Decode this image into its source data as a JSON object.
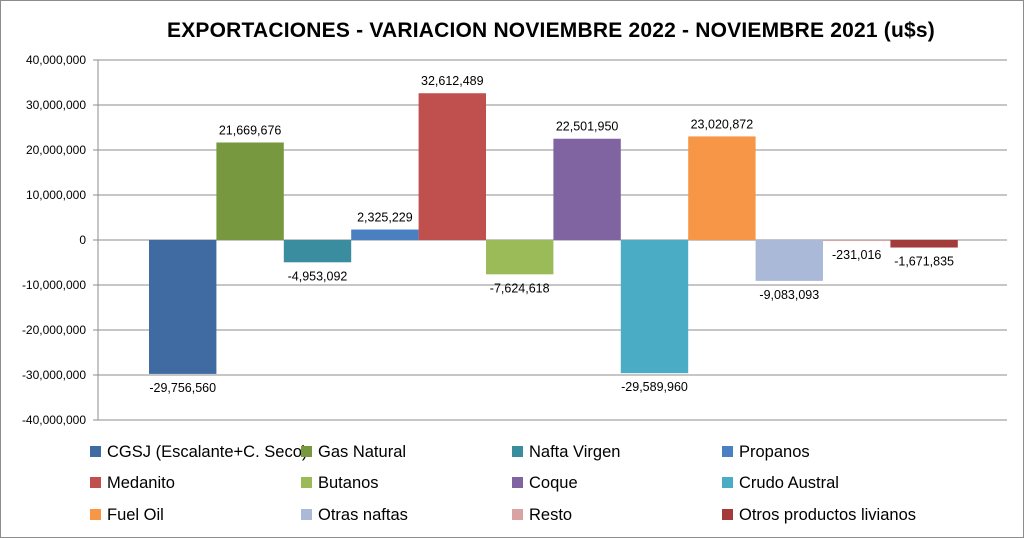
{
  "chart_data": {
    "type": "bar",
    "title": "EXPORTACIONES - VARIACION NOVIEMBRE 2022 - NOVIEMBRE 2021 (u$s)",
    "xlabel": "",
    "ylabel": "",
    "ylim": [
      -40000000,
      40000000
    ],
    "yticks": [
      40000000,
      30000000,
      20000000,
      10000000,
      0,
      -10000000,
      -20000000,
      -30000000,
      -40000000
    ],
    "ytick_labels": [
      "40,000,000",
      "30,000,000",
      "20,000,000",
      "10,000,000",
      "0",
      "-10,000,000",
      "-20,000,000",
      "-30,000,000",
      "-40,000,000"
    ],
    "grid": true,
    "legend_position": "bottom",
    "series": [
      {
        "name": "CGSJ (Escalante+C. Seco)",
        "value": -29756560,
        "label": "-29,756,560",
        "color": "#3f6aa2"
      },
      {
        "name": "Gas Natural",
        "value": 21669676,
        "label": "21,669,676",
        "color": "#77983f"
      },
      {
        "name": "Nafta Virgen",
        "value": -4953092,
        "label": "-4,953,092",
        "color": "#3a8d9f"
      },
      {
        "name": "Propanos",
        "value": 2325229,
        "label": "2,325,229",
        "color": "#4a7fc2"
      },
      {
        "name": "Medanito",
        "value": 32612489,
        "label": "32,612,489",
        "color": "#c0504d"
      },
      {
        "name": "Butanos",
        "value": -7624618,
        "label": "-7,624,618",
        "color": "#9bbb59"
      },
      {
        "name": "Coque",
        "value": 22501950,
        "label": "22,501,950",
        "color": "#8064a2"
      },
      {
        "name": "Crudo Austral",
        "value": -29589960,
        "label": "-29,589,960",
        "color": "#4bacc6"
      },
      {
        "name": "Fuel Oil",
        "value": 23020872,
        "label": "23,020,872",
        "color": "#f79646"
      },
      {
        "name": "Otras naftas",
        "value": -9083093,
        "label": "-9,083,093",
        "color": "#aab9d8"
      },
      {
        "name": "Resto",
        "value": -231016,
        "label": "-231,016",
        "color": "#d9a3a3"
      },
      {
        "name": "Otros productos livianos",
        "value": -1671835,
        "label": "-1,671,835",
        "color": "#a33b3b"
      }
    ]
  }
}
